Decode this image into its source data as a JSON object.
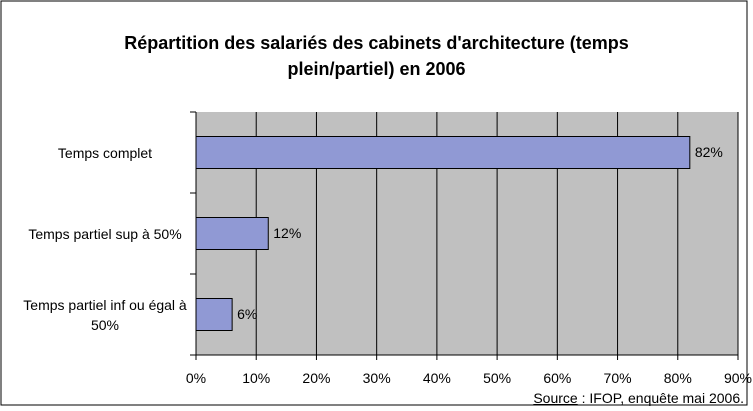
{
  "chart_data": {
    "type": "bar",
    "orientation": "horizontal",
    "title": "Répartition des salariés des cabinets d'architecture (temps plein/partiel) en 2006",
    "categories": [
      "Temps complet",
      "Temps partiel sup à 50%",
      "Temps partiel inf ou égal à 50%"
    ],
    "values": [
      82,
      12,
      6
    ],
    "value_labels": [
      "82%",
      "12%",
      "6%"
    ],
    "color": "#9099d4",
    "xlim": [
      0,
      90
    ],
    "xticks": [
      {
        "value": 0,
        "label": "0%"
      },
      {
        "value": 10,
        "label": "10%"
      },
      {
        "value": 20,
        "label": "20%"
      },
      {
        "value": 30,
        "label": "30%"
      },
      {
        "value": 40,
        "label": "40%"
      },
      {
        "value": 50,
        "label": "50%"
      },
      {
        "value": 60,
        "label": "60%"
      },
      {
        "value": 70,
        "label": "70%"
      },
      {
        "value": 80,
        "label": "80%"
      },
      {
        "value": 90,
        "label": "90%"
      }
    ],
    "grid": true,
    "source": {
      "label": "Source",
      "text": " : IFOP, enquête mai 2006."
    }
  }
}
